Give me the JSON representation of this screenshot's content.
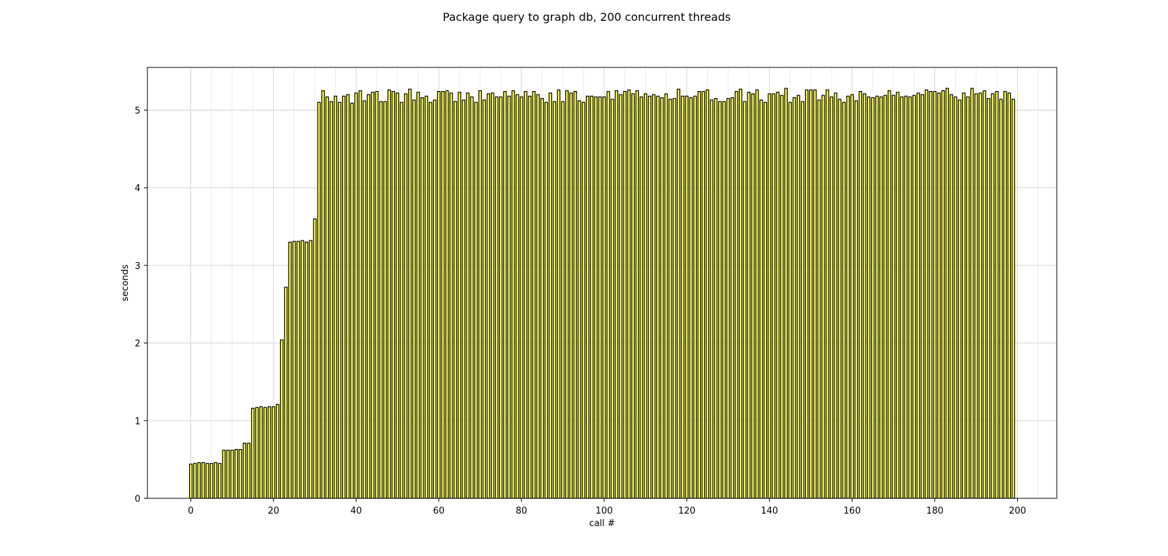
{
  "chart_data": {
    "type": "bar",
    "title": "Package query to graph db, 200 concurrent threads",
    "xlabel": "call #",
    "ylabel": "seconds",
    "xlim": [
      -10.5,
      209.5
    ],
    "ylim": [
      0,
      5.55
    ],
    "xticks": [
      0,
      20,
      40,
      60,
      80,
      100,
      120,
      140,
      160,
      180,
      200
    ],
    "yticks": [
      0,
      1,
      2,
      3,
      4,
      5
    ],
    "grid": true,
    "bar_color": "#ffff33",
    "edge_color": "#000000",
    "x_start": 0,
    "values": [
      0.44,
      0.45,
      0.46,
      0.46,
      0.45,
      0.45,
      0.46,
      0.45,
      0.62,
      0.62,
      0.62,
      0.63,
      0.63,
      0.71,
      0.71,
      1.16,
      1.17,
      1.18,
      1.17,
      1.18,
      1.18,
      1.21,
      2.04,
      2.72,
      3.3,
      3.31,
      3.31,
      3.32,
      3.3,
      3.32,
      3.6,
      5.1,
      5.25,
      5.17,
      5.11,
      5.18,
      5.1,
      5.18,
      5.2,
      5.09,
      5.22,
      5.25,
      5.12,
      5.2,
      5.23,
      5.24,
      5.11,
      5.11,
      5.26,
      5.24,
      5.22,
      5.1,
      5.21,
      5.27,
      5.13,
      5.23,
      5.16,
      5.18,
      5.1,
      5.13,
      5.24,
      5.24,
      5.25,
      5.22,
      5.11,
      5.23,
      5.13,
      5.22,
      5.17,
      5.1,
      5.25,
      5.13,
      5.21,
      5.22,
      5.17,
      5.17,
      5.24,
      5.18,
      5.25,
      5.2,
      5.17,
      5.24,
      5.18,
      5.24,
      5.2,
      5.15,
      5.1,
      5.22,
      5.11,
      5.26,
      5.11,
      5.25,
      5.22,
      5.24,
      5.12,
      5.1,
      5.18,
      5.18,
      5.17,
      5.17,
      5.17,
      5.24,
      5.14,
      5.25,
      5.2,
      5.24,
      5.26,
      5.21,
      5.25,
      5.17,
      5.21,
      5.18,
      5.2,
      5.18,
      5.16,
      5.21,
      5.14,
      5.15,
      5.27,
      5.18,
      5.18,
      5.16,
      5.18,
      5.24,
      5.24,
      5.26,
      5.13,
      5.15,
      5.11,
      5.11,
      5.15,
      5.16,
      5.24,
      5.27,
      5.11,
      5.23,
      5.21,
      5.26,
      5.13,
      5.1,
      5.21,
      5.21,
      5.23,
      5.19,
      5.28,
      5.1,
      5.16,
      5.19,
      5.11,
      5.26,
      5.26,
      5.26,
      5.13,
      5.19,
      5.26,
      5.17,
      5.22,
      5.14,
      5.1,
      5.18,
      5.2,
      5.12,
      5.24,
      5.21,
      5.17,
      5.16,
      5.18,
      5.17,
      5.19,
      5.25,
      5.19,
      5.23,
      5.17,
      5.18,
      5.17,
      5.19,
      5.22,
      5.2,
      5.26,
      5.24,
      5.24,
      5.22,
      5.25,
      5.28,
      5.2,
      5.17,
      5.13,
      5.22,
      5.17,
      5.28,
      5.21,
      5.22,
      5.25,
      5.15,
      5.21,
      5.24,
      5.14,
      5.24,
      5.22,
      5.14
    ]
  }
}
